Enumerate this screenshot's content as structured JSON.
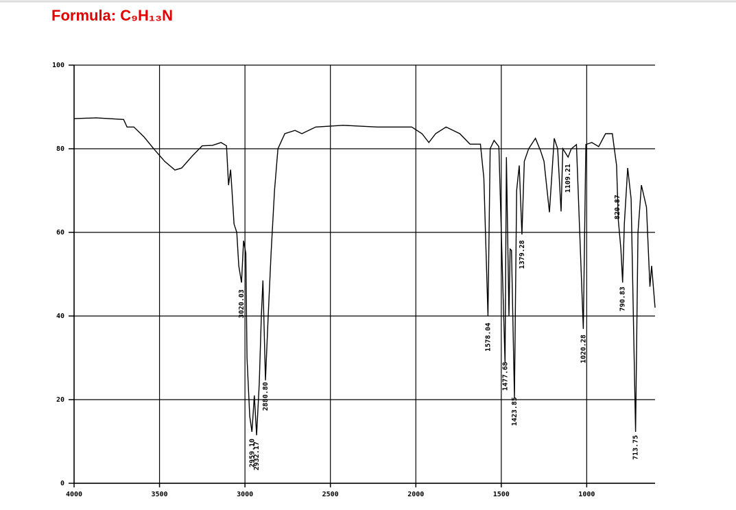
{
  "chart_data": {
    "type": "line",
    "title": "Formula: C₉H₁₃N",
    "x": [
      4000,
      3870,
      3710,
      3690,
      3650,
      3590,
      3530,
      3470,
      3410,
      3370,
      3310,
      3250,
      3190,
      3140,
      3108,
      3096,
      3084,
      3076,
      3064,
      3048,
      3036,
      3020,
      3008,
      2995,
      2988,
      2972,
      2959,
      2945,
      2932,
      2916,
      2904,
      2895,
      2880,
      2864,
      2847,
      2827,
      2807,
      2767,
      2707,
      2667,
      2586,
      2426,
      2225,
      2024,
      1964,
      1924,
      1884,
      1823,
      1743,
      1683,
      1622,
      1602,
      1578,
      1565,
      1542,
      1514,
      1478,
      1470,
      1455,
      1448,
      1440,
      1423,
      1410,
      1395,
      1379,
      1365,
      1340,
      1300,
      1270,
      1250,
      1218,
      1190,
      1170,
      1150,
      1140,
      1109,
      1090,
      1060,
      1020,
      1005,
      970,
      930,
      890,
      850,
      825,
      815,
      800,
      790,
      780,
      760,
      740,
      714,
      700,
      680,
      650,
      630,
      620,
      600
    ],
    "values": [
      87.2,
      87.4,
      87,
      85.2,
      85.2,
      82.8,
      79.8,
      77,
      74.9,
      75.4,
      78.2,
      80.7,
      80.8,
      81.5,
      80.7,
      71.3,
      75,
      70,
      62,
      60,
      52,
      48,
      58,
      55,
      30,
      16,
      12.3,
      21,
      11.5,
      24,
      40,
      48.5,
      24.6,
      40,
      55,
      70,
      80,
      83.6,
      84.4,
      83.6,
      85.2,
      85.6,
      85.2,
      85.2,
      83.6,
      81.5,
      83.6,
      85.2,
      83.6,
      81.1,
      81.1,
      73,
      40,
      80,
      82,
      80.5,
      28.7,
      78,
      40,
      56,
      55.7,
      20.5,
      70,
      76,
      59.5,
      77,
      80,
      82.5,
      79.5,
      77,
      64.8,
      82.5,
      80,
      65,
      80,
      78,
      80,
      81,
      36.9,
      81,
      81.5,
      80.5,
      83.6,
      83.6,
      76,
      63,
      56,
      48,
      62,
      75.4,
      68,
      12.3,
      60,
      71.3,
      66,
      47,
      52,
      42
    ],
    "color": "#000000",
    "xlim": [
      4000,
      600
    ],
    "ylim": [
      0,
      100
    ],
    "xticks": [
      4000,
      3500,
      3000,
      2500,
      2000,
      1500,
      1000
    ],
    "yticks": [
      0,
      20,
      40,
      60,
      80,
      100
    ],
    "grid": true,
    "annotations": [
      {
        "value": 3020.03,
        "label": "3020.03"
      },
      {
        "value": 2959.1,
        "label": "2959.10"
      },
      {
        "value": 2932.17,
        "label": "2932.17"
      },
      {
        "value": 2880.8,
        "label": "2880.80"
      },
      {
        "value": 1578.04,
        "label": "1578.04"
      },
      {
        "value": 1477.68,
        "label": "1477.68"
      },
      {
        "value": 1423.85,
        "label": "1423.85"
      },
      {
        "value": 1379.28,
        "label": "1379.28"
      },
      {
        "value": 1109.21,
        "label": "1109.21"
      },
      {
        "value": 1020.28,
        "label": "1020.28"
      },
      {
        "value": 790.83,
        "label": "790.83"
      },
      {
        "value": 820.87,
        "label": "820.87"
      },
      {
        "value": 713.75,
        "label": "713.75"
      }
    ]
  }
}
